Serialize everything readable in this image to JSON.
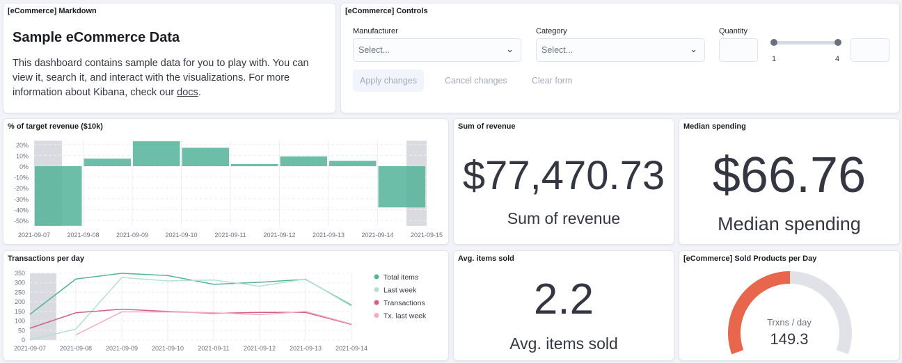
{
  "markdown_panel": {
    "title": "[eCommerce] Markdown",
    "heading": "Sample eCommerce Data",
    "body": "This dashboard contains sample data for you to play with. You can view it, search it, and interact with the visualizations. For more information about Kibana, check our ",
    "link": "docs",
    "suffix": "."
  },
  "controls_panel": {
    "title": "[eCommerce] Controls",
    "manufacturer": {
      "label": "Manufacturer",
      "placeholder": "Select..."
    },
    "category": {
      "label": "Category",
      "placeholder": "Select..."
    },
    "quantity": {
      "label": "Quantity",
      "min": "1",
      "max": "4",
      "range_low": 1,
      "range_high": 4
    },
    "apply_label": "Apply changes",
    "cancel_label": "Cancel changes",
    "clear_label": "Clear form"
  },
  "revenue_panel": {
    "title": "% of target revenue ($10k)"
  },
  "sum_panel": {
    "title": "Sum of revenue",
    "value": "$77,470.73",
    "label": "Sum of revenue"
  },
  "median_panel": {
    "title": "Median spending",
    "value": "$66.76",
    "label": "Median spending"
  },
  "transactions_panel": {
    "title": "Transactions per day"
  },
  "avg_panel": {
    "title": "Avg. items sold",
    "value": "2.2",
    "label": "Avg. items sold"
  },
  "gauge_panel": {
    "title": "[eCommerce] Sold Products per Day",
    "label": "Trxns / day",
    "value": "149.3",
    "fill_fraction": 0.5,
    "color": "#e7664c"
  },
  "chart_data": [
    {
      "type": "bar",
      "title": "% of target revenue ($10k)",
      "categories": [
        "2021-09-07",
        "2021-09-08",
        "2021-09-09",
        "2021-09-10",
        "2021-09-11",
        "2021-09-12",
        "2021-09-13",
        "2021-09-14"
      ],
      "x_ticks": [
        "2021-09-07",
        "2021-09-08",
        "2021-09-09",
        "2021-09-10",
        "2021-09-11",
        "2021-09-12",
        "2021-09-13",
        "2021-09-14",
        "2021-09-15"
      ],
      "values": [
        -55,
        7,
        23,
        17,
        2,
        9,
        5,
        -38
      ],
      "y_ticks": [
        "20%",
        "10%",
        "0%",
        "-10%",
        "-20%",
        "-30%",
        "-40%",
        "-50%"
      ],
      "ylim": [
        -55,
        23
      ],
      "color": "#54b399",
      "grid": true
    },
    {
      "type": "line",
      "title": "Transactions per day",
      "x": [
        "2021-09-07",
        "2021-09-08",
        "2021-09-09",
        "2021-09-10",
        "2021-09-11",
        "2021-09-12",
        "2021-09-13",
        "2021-09-14"
      ],
      "y_ticks": [
        "350",
        "300",
        "250",
        "200",
        "150",
        "100",
        "50",
        "0"
      ],
      "ylim": [
        0,
        350
      ],
      "legend": "right",
      "grid": true,
      "series": [
        {
          "name": "Total items",
          "color": "#54b399",
          "values": [
            135,
            320,
            350,
            338,
            292,
            303,
            318,
            183
          ]
        },
        {
          "name": "Last week",
          "color": "#b3e0d2",
          "values": [
            0,
            58,
            328,
            310,
            315,
            282,
            320,
            178
          ]
        },
        {
          "name": "Transactions",
          "color": "#d36086",
          "values": [
            62,
            143,
            162,
            150,
            140,
            145,
            145,
            82
          ]
        },
        {
          "name": "Tx. last week",
          "color": "#eeaec2",
          "values": [
            null,
            27,
            148,
            147,
            143,
            133,
            150,
            84
          ]
        }
      ]
    }
  ]
}
